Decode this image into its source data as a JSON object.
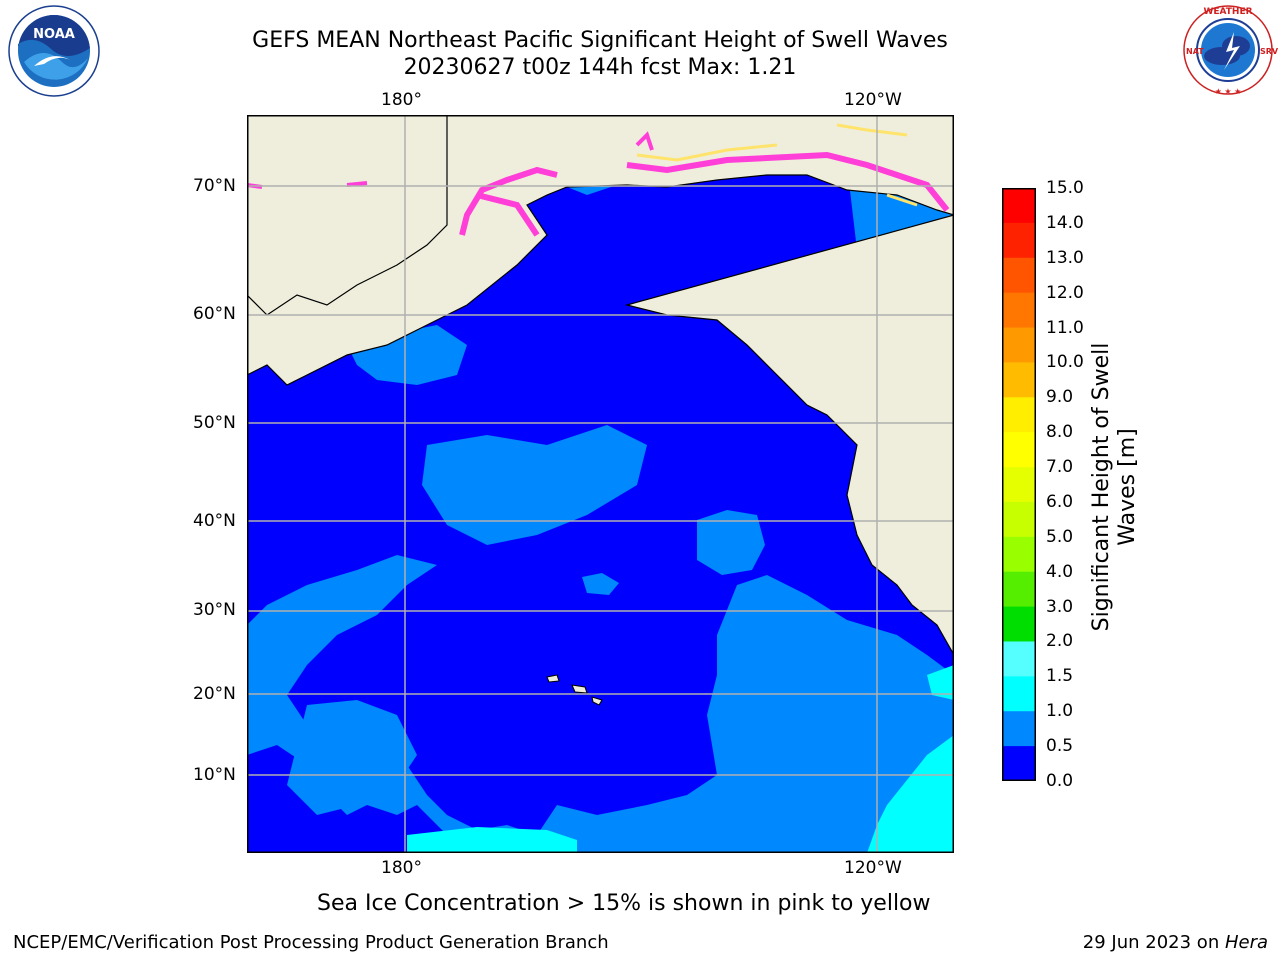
{
  "header": {
    "title_line1": "GEFS MEAN Northeast Pacific Significant Height of Swell Waves",
    "title_line2": "20230627 t00z 144h fcst   Max: 1.21"
  },
  "logos": {
    "left": {
      "text": "NOAA",
      "ring_text": "NATIONAL OCEANIC AND ATMOSPHERIC ADMINISTRATION · U.S. DEPARTMENT OF COMMERCE"
    },
    "right": {
      "ring_text": "NATIONAL WEATHER SERVICE"
    }
  },
  "map": {
    "lon_labels_top": [
      "180°",
      "120°W"
    ],
    "lon_labels_bottom": [
      "180°",
      "120°W"
    ],
    "lat_labels": [
      "70°N",
      "60°N",
      "50°N",
      "40°N",
      "30°N",
      "20°N",
      "10°N"
    ],
    "colors": {
      "land": "#efeedc",
      "ice_pink": "#ff3fd8",
      "ice_yellow": "#ffe36a",
      "grid": "#b0b0b0"
    }
  },
  "colorbar": {
    "title": "Significant Height of Swell Waves [m]",
    "title_line1": "Significant Height of Swell",
    "title_line2": "Waves [m]",
    "ticks": [
      "15.0",
      "14.0",
      "13.0",
      "12.0",
      "11.0",
      "10.0",
      "9.0",
      "8.0",
      "7.0",
      "6.0",
      "5.0",
      "4.0",
      "3.0",
      "2.0",
      "1.5",
      "1.0",
      "0.5",
      "0.0"
    ],
    "colors_top_to_bottom": [
      "#ff0000",
      "#ff2200",
      "#ff5500",
      "#ff7700",
      "#ff9900",
      "#ffbb00",
      "#ffee00",
      "#ffff00",
      "#e6ff00",
      "#c8ff00",
      "#99ff00",
      "#55ee00",
      "#00dd00",
      "#55ff88",
      "#aaffff",
      "#55ffff",
      "#00ffff",
      "#0088ff",
      "#0000ff"
    ]
  },
  "chart_data": {
    "type": "heatmap",
    "title": "GEFS MEAN Northeast Pacific Significant Height of Swell Waves",
    "subtitle": "20230627 t00z 144h fcst   Max: 1.21",
    "xlabel": "",
    "ylabel": "",
    "x_ticks": [
      "180°",
      "120°W"
    ],
    "y_ticks": [
      "70°N",
      "60°N",
      "50°N",
      "40°N",
      "30°N",
      "20°N",
      "10°N"
    ],
    "colorbar_label": "Significant Height of Swell Waves [m]",
    "colorbar_levels": [
      0.0,
      0.5,
      1.0,
      1.5,
      2.0,
      3.0,
      4.0,
      5.0,
      6.0,
      7.0,
      8.0,
      9.0,
      10.0,
      11.0,
      12.0,
      13.0,
      14.0,
      15.0
    ],
    "max_value": 1.21,
    "grid": true
  },
  "footer": {
    "note": "Sea Ice Concentration > 15% is shown in pink to yellow",
    "left": "NCEP/EMC/Verification Post Processing Product Generation Branch",
    "right_prefix": "29 Jun 2023 on ",
    "right_host": "Hera"
  }
}
